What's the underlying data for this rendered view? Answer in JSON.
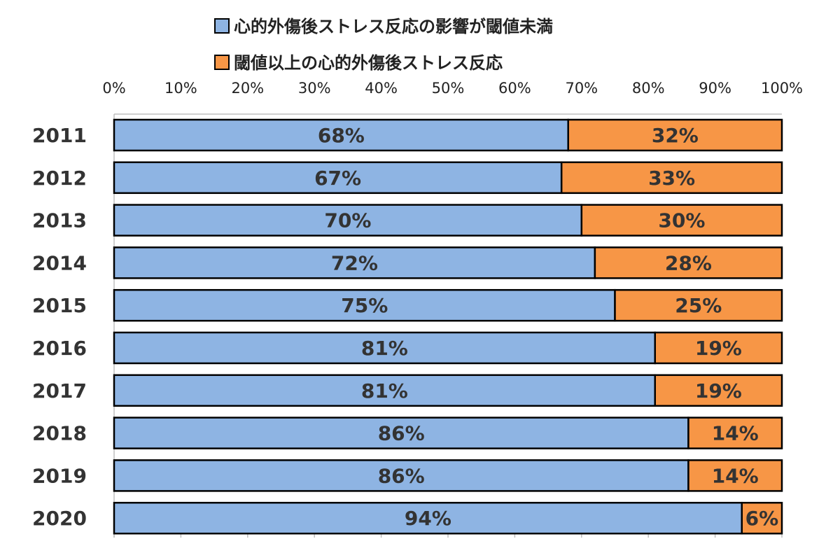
{
  "chart_data": {
    "type": "bar",
    "orientation": "horizontal",
    "stacked": true,
    "percent_stacked": true,
    "categories": [
      "2011",
      "2012",
      "2013",
      "2014",
      "2015",
      "2016",
      "2017",
      "2018",
      "2019",
      "2020"
    ],
    "series": [
      {
        "name": "心的外傷後ストレス反応の影響が閾値未満",
        "color": "#8eb4e3",
        "values": [
          68,
          67,
          70,
          72,
          75,
          81,
          81,
          86,
          86,
          94
        ],
        "labels": [
          "68%",
          "67%",
          "70%",
          "72%",
          "75%",
          "81%",
          "81%",
          "86%",
          "86%",
          "94%"
        ]
      },
      {
        "name": "閾値以上の心的外傷後ストレス反応",
        "color": "#f79646",
        "values": [
          32,
          33,
          30,
          28,
          25,
          19,
          19,
          14,
          14,
          6
        ],
        "labels": [
          "32%",
          "33%",
          "30%",
          "28%",
          "25%",
          "19%",
          "19%",
          "14%",
          "14%",
          "6%"
        ]
      }
    ],
    "x_ticks": [
      "0%",
      "10%",
      "20%",
      "30%",
      "40%",
      "50%",
      "60%",
      "70%",
      "80%",
      "90%",
      "100%"
    ],
    "xlim": [
      0,
      100
    ],
    "axis_position": "top",
    "legend_position": "top",
    "grid": false,
    "title": "",
    "xlabel": "",
    "ylabel": ""
  }
}
